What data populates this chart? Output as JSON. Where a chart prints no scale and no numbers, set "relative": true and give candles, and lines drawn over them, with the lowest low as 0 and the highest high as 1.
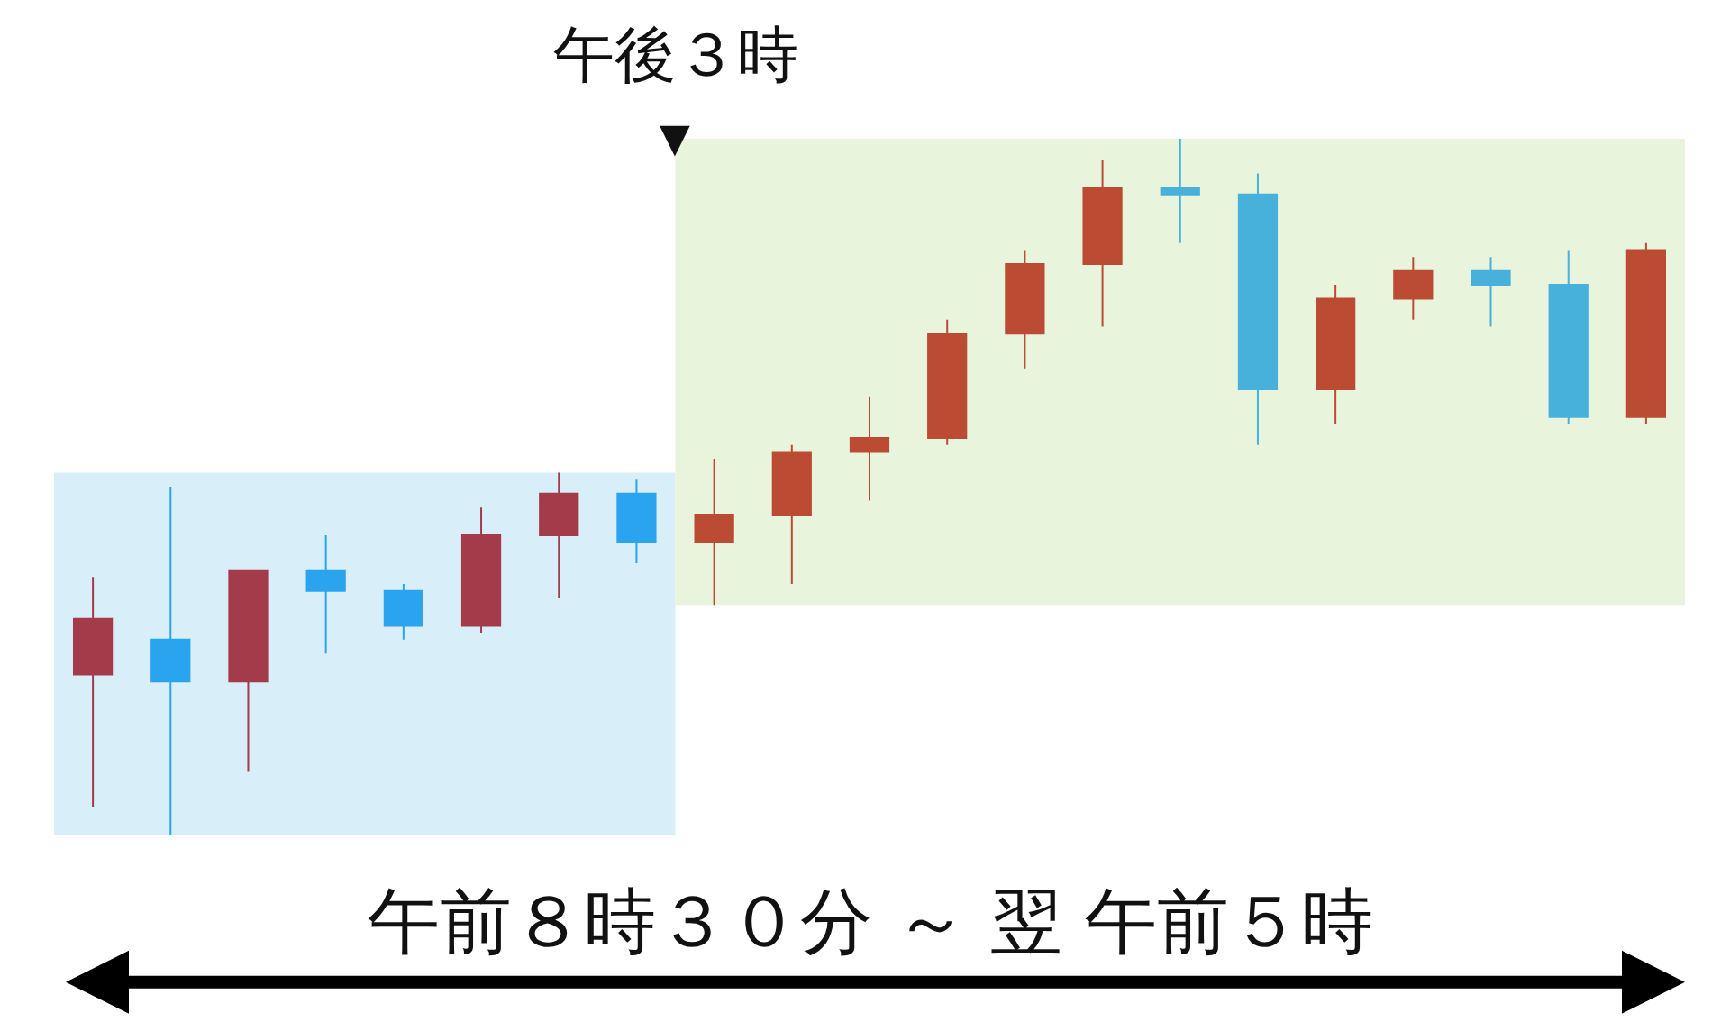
{
  "chart_data": {
    "type": "candlestick",
    "relative": true,
    "categories": [
      null,
      null,
      null,
      null,
      null,
      null,
      null,
      null,
      null,
      null,
      null,
      null,
      null,
      null,
      null,
      null,
      null,
      null,
      null,
      null,
      null
    ],
    "ohlc": [
      [
        0.23,
        0.37,
        0.04,
        0.31
      ],
      [
        0.28,
        0.5,
        0,
        0.22
      ],
      [
        0.22,
        0.38,
        0.09,
        0.38
      ],
      [
        0.38,
        0.43,
        0.26,
        0.35
      ],
      [
        0.35,
        0.36,
        0.28,
        0.3
      ],
      [
        0.3,
        0.47,
        0.29,
        0.43
      ],
      [
        0.43,
        0.52,
        0.34,
        0.49
      ],
      [
        0.49,
        0.51,
        0.39,
        0.42
      ],
      [
        0.42,
        0.54,
        0.33,
        0.46
      ],
      [
        0.46,
        0.56,
        0.36,
        0.55
      ],
      [
        0.55,
        0.63,
        0.48,
        0.57
      ],
      [
        0.57,
        0.74,
        0.56,
        0.72
      ],
      [
        0.72,
        0.84,
        0.67,
        0.82
      ],
      [
        0.82,
        0.97,
        0.73,
        0.93
      ],
      [
        0.93,
        1,
        0.85,
        0.92
      ],
      [
        0.92,
        0.95,
        0.56,
        0.64
      ],
      [
        0.64,
        0.79,
        0.59,
        0.77
      ],
      [
        0.77,
        0.83,
        0.74,
        0.81
      ],
      [
        0.81,
        0.83,
        0.73,
        0.79
      ],
      [
        0.79,
        0.84,
        0.59,
        0.6
      ],
      [
        0.6,
        0.85,
        0.59,
        0.84
      ]
    ],
    "colors": [
      "#a33b4a",
      "#2ba4f0",
      "#a33b4a",
      "#2ba4f0",
      "#2ba4f0",
      "#a33b4a",
      "#a33b4a",
      "#2ba4f0",
      "#bc4b33",
      "#bc4b33",
      "#bc4b33",
      "#bc4b33",
      "#bc4b33",
      "#bc4b33",
      "#47b1dc",
      "#47b1dc",
      "#bc4b33",
      "#bc4b33",
      "#47b1dc",
      "#47b1dc",
      "#bc4b33"
    ],
    "annotations": [
      "午後３時",
      "▼",
      "午前８時３０分 ～ 翌 午前５時"
    ]
  }
}
